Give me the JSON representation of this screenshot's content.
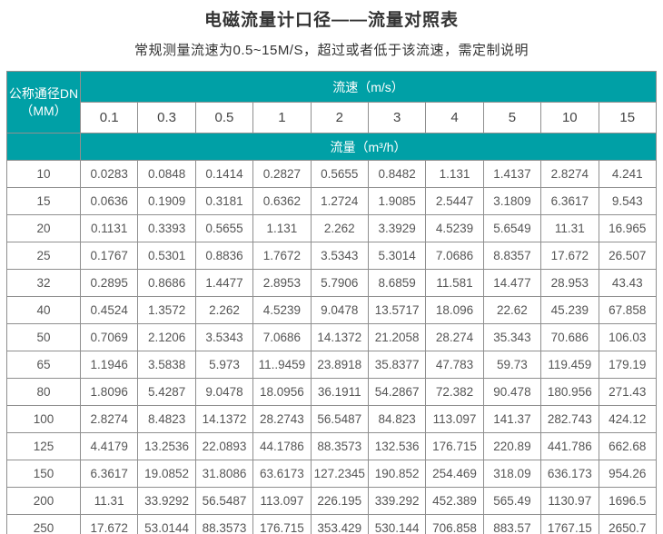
{
  "title": "电磁流量计口径——流量对照表",
  "subtitle": "常规测量流速为0.5~15M/S，超过或者低于该流速，需定制说明",
  "colors": {
    "header_teal": "#00a0a6",
    "border_gray": "#8f8f8f",
    "data_text": "#555555",
    "title_text": "#333333"
  },
  "table": {
    "corner_header_line1": "公称通径DN",
    "corner_header_line2": "（MM）",
    "velocity_header": "流速（m/s）",
    "flow_header": "流量（m³/h）",
    "velocities": [
      "0.1",
      "0.3",
      "0.5",
      "1",
      "2",
      "3",
      "4",
      "5",
      "10",
      "15"
    ],
    "rows": [
      {
        "dn": "10",
        "values": [
          "0.0283",
          "0.0848",
          "0.1414",
          "0.2827",
          "0.5655",
          "0.8482",
          "1.131",
          "1.4137",
          "2.8274",
          "4.241"
        ]
      },
      {
        "dn": "15",
        "values": [
          "0.0636",
          "0.1909",
          "0.3181",
          "0.6362",
          "1.2724",
          "1.9085",
          "2.5447",
          "3.1809",
          "6.3617",
          "9.543"
        ]
      },
      {
        "dn": "20",
        "values": [
          "0.1131",
          "0.3393",
          "0.5655",
          "1.131",
          "2.262",
          "3.3929",
          "4.5239",
          "5.6549",
          "11.31",
          "16.965"
        ]
      },
      {
        "dn": "25",
        "values": [
          "0.1767",
          "0.5301",
          "0.8836",
          "1.7672",
          "3.5343",
          "5.3014",
          "7.0686",
          "8.8357",
          "17.672",
          "26.507"
        ]
      },
      {
        "dn": "32",
        "values": [
          "0.2895",
          "0.8686",
          "1.4477",
          "2.8953",
          "5.7906",
          "8.6859",
          "11.581",
          "14.477",
          "28.953",
          "43.43"
        ]
      },
      {
        "dn": "40",
        "values": [
          "0.4524",
          "1.3572",
          "2.262",
          "4.5239",
          "9.0478",
          "13.5717",
          "18.096",
          "22.62",
          "45.239",
          "67.858"
        ]
      },
      {
        "dn": "50",
        "values": [
          "0.7069",
          "2.1206",
          "3.5343",
          "7.0686",
          "14.1372",
          "21.2058",
          "28.274",
          "35.343",
          "70.686",
          "106.03"
        ]
      },
      {
        "dn": "65",
        "values": [
          "1.1946",
          "3.5838",
          "5.973",
          "11..9459",
          "23.8918",
          "35.8377",
          "47.783",
          "59.73",
          "119.459",
          "179.19"
        ]
      },
      {
        "dn": "80",
        "values": [
          "1.8096",
          "5.4287",
          "9.0478",
          "18.0956",
          "36.1911",
          "54.2867",
          "72.382",
          "90.478",
          "180.956",
          "271.43"
        ]
      },
      {
        "dn": "100",
        "values": [
          "2.8274",
          "8.4823",
          "14.1372",
          "28.2743",
          "56.5487",
          "84.823",
          "113.097",
          "141.37",
          "282.743",
          "424.12"
        ]
      },
      {
        "dn": "125",
        "values": [
          "4.4179",
          "13.2536",
          "22.0893",
          "44.1786",
          "88.3573",
          "132.536",
          "176.715",
          "220.89",
          "441.786",
          "662.68"
        ]
      },
      {
        "dn": "150",
        "values": [
          "6.3617",
          "19.0852",
          "31.8086",
          "63.6173",
          "127.2345",
          "190.852",
          "254.469",
          "318.09",
          "636.173",
          "954.26"
        ]
      },
      {
        "dn": "200",
        "values": [
          "11.31",
          "33.9292",
          "56.5487",
          "113.097",
          "226.195",
          "339.292",
          "452.389",
          "565.49",
          "1130.97",
          "1696.5"
        ]
      },
      {
        "dn": "250",
        "values": [
          "17.672",
          "53.0144",
          "88.3573",
          "176.715",
          "353.429",
          "530.144",
          "706.858",
          "883.57",
          "1767.15",
          "2650.7"
        ]
      }
    ]
  }
}
